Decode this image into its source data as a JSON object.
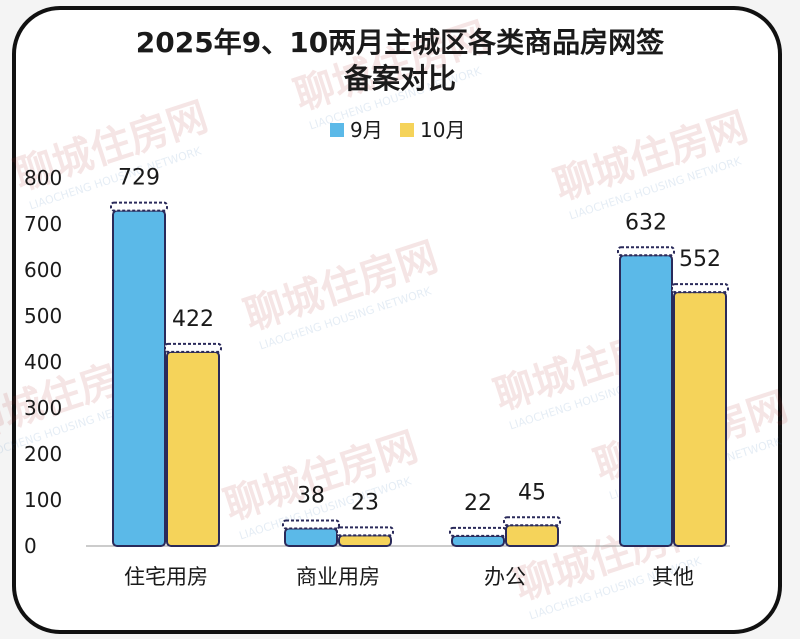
{
  "chart_data": {
    "type": "bar",
    "title_lines": [
      "2025年9、10两月主城区各类商品房网签",
      "备案对比"
    ],
    "categories": [
      "住宅用房",
      "商业用房",
      "办公",
      "其他"
    ],
    "series": [
      {
        "name": "9月",
        "values": [
          729,
          38,
          22,
          632
        ],
        "color": "#5bb9e8"
      },
      {
        "name": "10月",
        "values": [
          422,
          23,
          45,
          552
        ],
        "color": "#f5d35a"
      }
    ],
    "yticks": [
      0,
      100,
      200,
      300,
      400,
      500,
      600,
      700,
      800
    ],
    "ylim": [
      0,
      800
    ],
    "grid": false,
    "legend_position": "top-center"
  },
  "watermark": {
    "text": "聊城住房网",
    "subtext": "LIAOCHENG HOUSING NETWORK"
  }
}
